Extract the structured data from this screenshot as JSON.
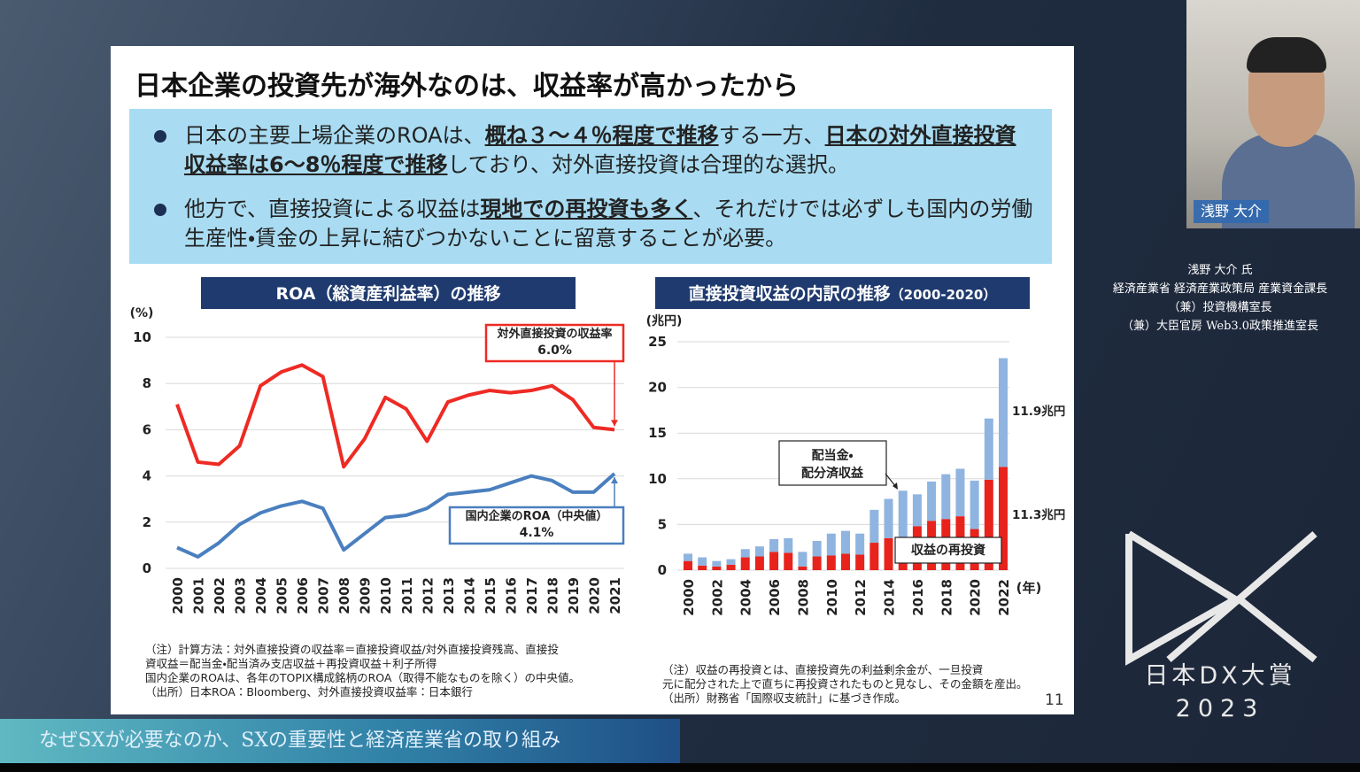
{
  "header": {
    "title": "日本企業の投資先が海外なのは、収益率が高かったから"
  },
  "bullets": [
    [
      {
        "text": "日本の主要上場企業のROAは、"
      },
      {
        "text": "概ね３～４％程度で推移",
        "emphasis": true
      },
      {
        "text": "する一方、"
      },
      {
        "text": "日本の対外直接投資収益率は6～8％程度で推移",
        "emphasis": true
      },
      {
        "text": "しており、対外直接投資は合理的な選択。"
      }
    ],
    [
      {
        "text": "他方で、直接投資による収益は"
      },
      {
        "text": "現地での再投資も多く",
        "emphasis": true
      },
      {
        "text": "、それだけでは必ずしも国内の労働生産性・賃金の上昇に結びつかないことに留意することが必要。"
      }
    ]
  ],
  "chart_data": [
    {
      "type": "line",
      "title": "ROA（総資産利益率）の推移",
      "y_label": "(%)",
      "categories": [
        "2000",
        "2001",
        "2002",
        "2003",
        "2004",
        "2005",
        "2006",
        "2007",
        "2008",
        "2009",
        "2010",
        "2011",
        "2012",
        "2013",
        "2014",
        "2015",
        "2016",
        "2017",
        "2018",
        "2019",
        "2020",
        "2021"
      ],
      "series": [
        {
          "name": "対外直接投資の収益率",
          "color": "#ee2a24",
          "annotation": "6.0%",
          "values": [
            7.1,
            4.6,
            4.5,
            5.3,
            7.9,
            8.5,
            8.8,
            8.3,
            4.4,
            5.6,
            7.4,
            6.9,
            5.5,
            7.2,
            7.5,
            7.7,
            7.6,
            7.7,
            7.9,
            7.3,
            6.1,
            6.0
          ]
        },
        {
          "name": "国内企業のROA（中央値）",
          "color": "#4a7fbf",
          "annotation": "4.1%",
          "values": [
            0.9,
            0.5,
            1.1,
            1.9,
            2.4,
            2.7,
            2.9,
            2.6,
            0.8,
            1.5,
            2.2,
            2.3,
            2.6,
            3.2,
            3.3,
            3.4,
            3.7,
            4.0,
            3.8,
            3.3,
            3.3,
            4.1
          ]
        }
      ],
      "ylim": [
        0,
        10
      ],
      "yticks": [
        0,
        2,
        4,
        6,
        8,
        10
      ],
      "grid": true
    },
    {
      "type": "stacked_bar",
      "title": "直接投資収益の内訳の推移",
      "subtitle": "（2000-2020）",
      "y_label": "(兆円)",
      "x_label": "(年)",
      "categories": [
        "2000",
        null,
        "2002",
        null,
        "2004",
        null,
        "2006",
        null,
        "2008",
        null,
        "2010",
        null,
        "2012",
        null,
        "2014",
        null,
        "2016",
        null,
        "2018",
        null,
        "2020",
        null,
        "2022"
      ],
      "series": [
        {
          "name": "収益の再投資",
          "color": "#e8231c",
          "annotation": "11.3兆円",
          "values": [
            1.0,
            0.5,
            0.4,
            0.6,
            1.4,
            1.5,
            2.0,
            1.9,
            0.4,
            1.5,
            1.6,
            1.8,
            1.7,
            3.0,
            3.5,
            3.6,
            4.8,
            5.4,
            5.6,
            5.9,
            4.5,
            9.9,
            11.3
          ]
        },
        {
          "name": "配当金・\n配分済収益",
          "color": "#8fb4e0",
          "annotation": "11.9兆円",
          "values": [
            0.8,
            0.9,
            0.6,
            0.6,
            0.9,
            1.1,
            1.4,
            1.6,
            1.6,
            1.7,
            2.4,
            2.5,
            2.3,
            3.6,
            4.3,
            5.1,
            3.5,
            4.3,
            4.9,
            5.2,
            5.3,
            6.7,
            11.9
          ]
        }
      ],
      "ylim": [
        0,
        25
      ],
      "yticks": [
        0,
        5,
        10,
        15,
        20,
        25
      ],
      "grid": true
    }
  ],
  "notes": {
    "left": [
      "（注）計算方法：対外直接投資の収益率＝直接投資収益/対外直接投資残高、直接投",
      "資収益＝配当金・配当済み支店収益＋再投資収益＋利子所得",
      "国内企業のROAは、各年のTOPIX構成銘柄のROA（取得不能なものを除く）の中央値。",
      "（出所）日本ROA：Bloomberg、対外直接投資収益率：日本銀行"
    ],
    "right": [
      "（注）収益の再投資とは、直接投資先の利益剰余金が、一旦投資",
      "元に配分された上で直ちに再投資されたものと見なし、その金額を産出。",
      "（出所）財務省「国際収支統計」に基づき作成。"
    ]
  },
  "page_number": "11",
  "speaker": {
    "video_label": "浅野 大介",
    "lines": [
      "浅野 大介 氏",
      "経済産業省 経済産業政策局 産業資金課長",
      "（兼）投資機構室長",
      "（兼）大臣官房 Web3.0政策推進室長"
    ]
  },
  "logo": {
    "name": "日本DX大賞",
    "year": "2023"
  },
  "caption": "なぜSXが必要なのか、SXの重要性と経済産業省の取り組み"
}
